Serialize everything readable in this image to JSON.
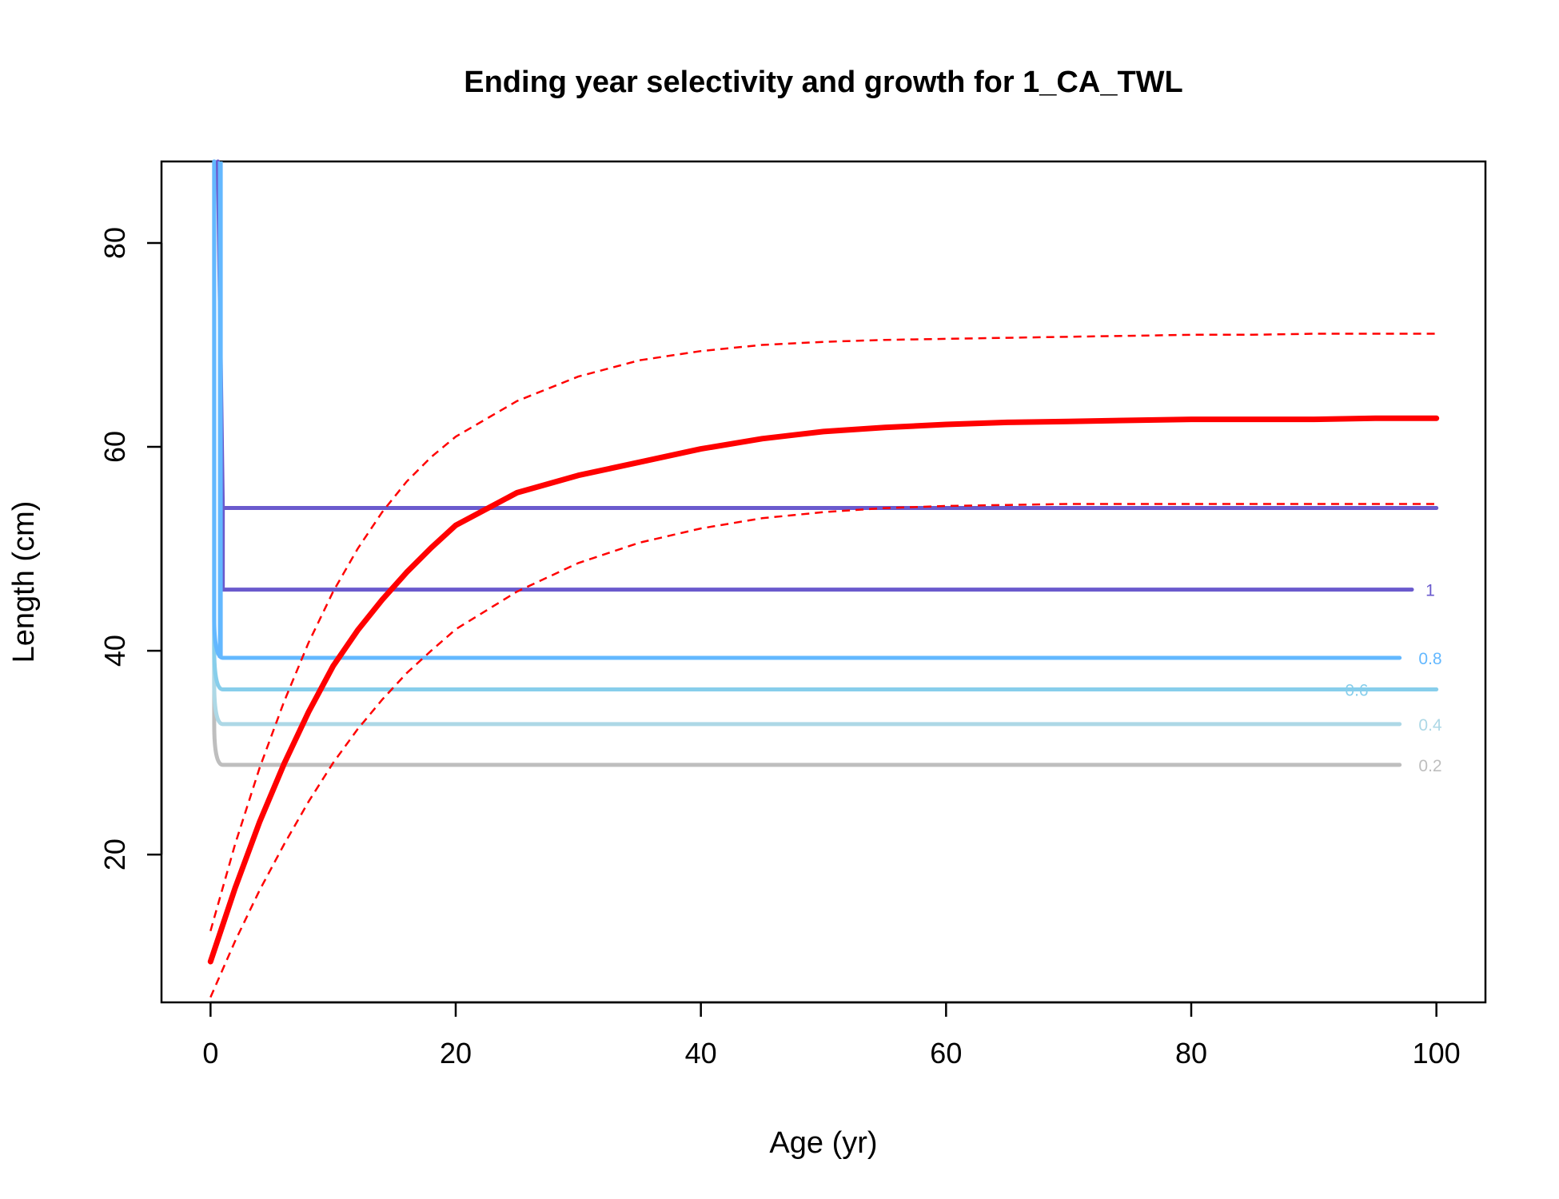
{
  "chart_data": {
    "type": "line",
    "title": "Ending year selectivity and growth for 1_CA_TWL",
    "xlabel": "Age (yr)",
    "ylabel": "Length (cm)",
    "xlim": [
      -4,
      104
    ],
    "ylim": [
      5.5,
      88
    ],
    "xticks": [
      0,
      20,
      40,
      60,
      80,
      100
    ],
    "yticks": [
      20,
      40,
      60,
      80
    ],
    "growth": {
      "color": "#ff0000",
      "mean": {
        "x": [
          0,
          2,
          4,
          6,
          8,
          10,
          12,
          14,
          16,
          18,
          20,
          25,
          30,
          35,
          40,
          45,
          50,
          55,
          60,
          65,
          70,
          75,
          80,
          85,
          90,
          95,
          100
        ],
        "y": [
          9.5,
          16.7,
          23.2,
          28.9,
          34.0,
          38.5,
          42.0,
          45.0,
          47.7,
          50.1,
          52.3,
          55.5,
          57.2,
          58.5,
          59.8,
          60.8,
          61.5,
          61.9,
          62.2,
          62.4,
          62.5,
          62.6,
          62.7,
          62.7,
          62.7,
          62.8,
          62.8
        ]
      },
      "upper": {
        "x": [
          0,
          2,
          4,
          6,
          8,
          10,
          12,
          14,
          16,
          18,
          20,
          25,
          30,
          35,
          40,
          45,
          50,
          55,
          60,
          65,
          70,
          75,
          80,
          85,
          90,
          95,
          100
        ],
        "y": [
          12.5,
          21.0,
          28.5,
          35.0,
          40.8,
          45.8,
          50.0,
          53.6,
          56.6,
          59.0,
          61.0,
          64.5,
          66.9,
          68.5,
          69.4,
          70.0,
          70.3,
          70.5,
          70.6,
          70.7,
          70.8,
          70.9,
          71.0,
          71.0,
          71.1,
          71.1,
          71.1
        ]
      },
      "lower": {
        "x": [
          0,
          2,
          4,
          6,
          8,
          10,
          12,
          14,
          16,
          18,
          20,
          25,
          30,
          35,
          40,
          45,
          50,
          55,
          60,
          65,
          70,
          75,
          80,
          85,
          90,
          95,
          100
        ],
        "y": [
          6.0,
          11.5,
          16.5,
          21.0,
          25.2,
          29.0,
          32.3,
          35.2,
          37.8,
          40.0,
          42.1,
          45.8,
          48.6,
          50.6,
          52.0,
          53.0,
          53.6,
          54.0,
          54.2,
          54.3,
          54.4,
          54.4,
          54.4,
          54.4,
          54.4,
          54.4,
          54.4
        ]
      }
    },
    "selectivity_contours": [
      {
        "level": "1",
        "color": "#6a5acd",
        "type": "loop",
        "x_end": 98,
        "label_x": 99.5,
        "top_y": 54,
        "bottom_y": 46
      },
      {
        "level": "0.8",
        "color": "#63b8ff",
        "type": "line",
        "x_end": 97,
        "label_x": 99.5,
        "y": 39.3
      },
      {
        "level": "0.6",
        "color": "#87ceeb",
        "type": "line",
        "x_end": 100,
        "label_x": 93.5,
        "y": 36.2
      },
      {
        "level": "0.4",
        "color": "#add8e6",
        "type": "line",
        "x_end": 97,
        "label_x": 99.5,
        "y": 32.8
      },
      {
        "level": "0.2",
        "color": "#bebebe",
        "type": "line",
        "x_end": 97,
        "label_x": 99.5,
        "y": 28.8
      }
    ],
    "vertical_band_top": 88
  }
}
